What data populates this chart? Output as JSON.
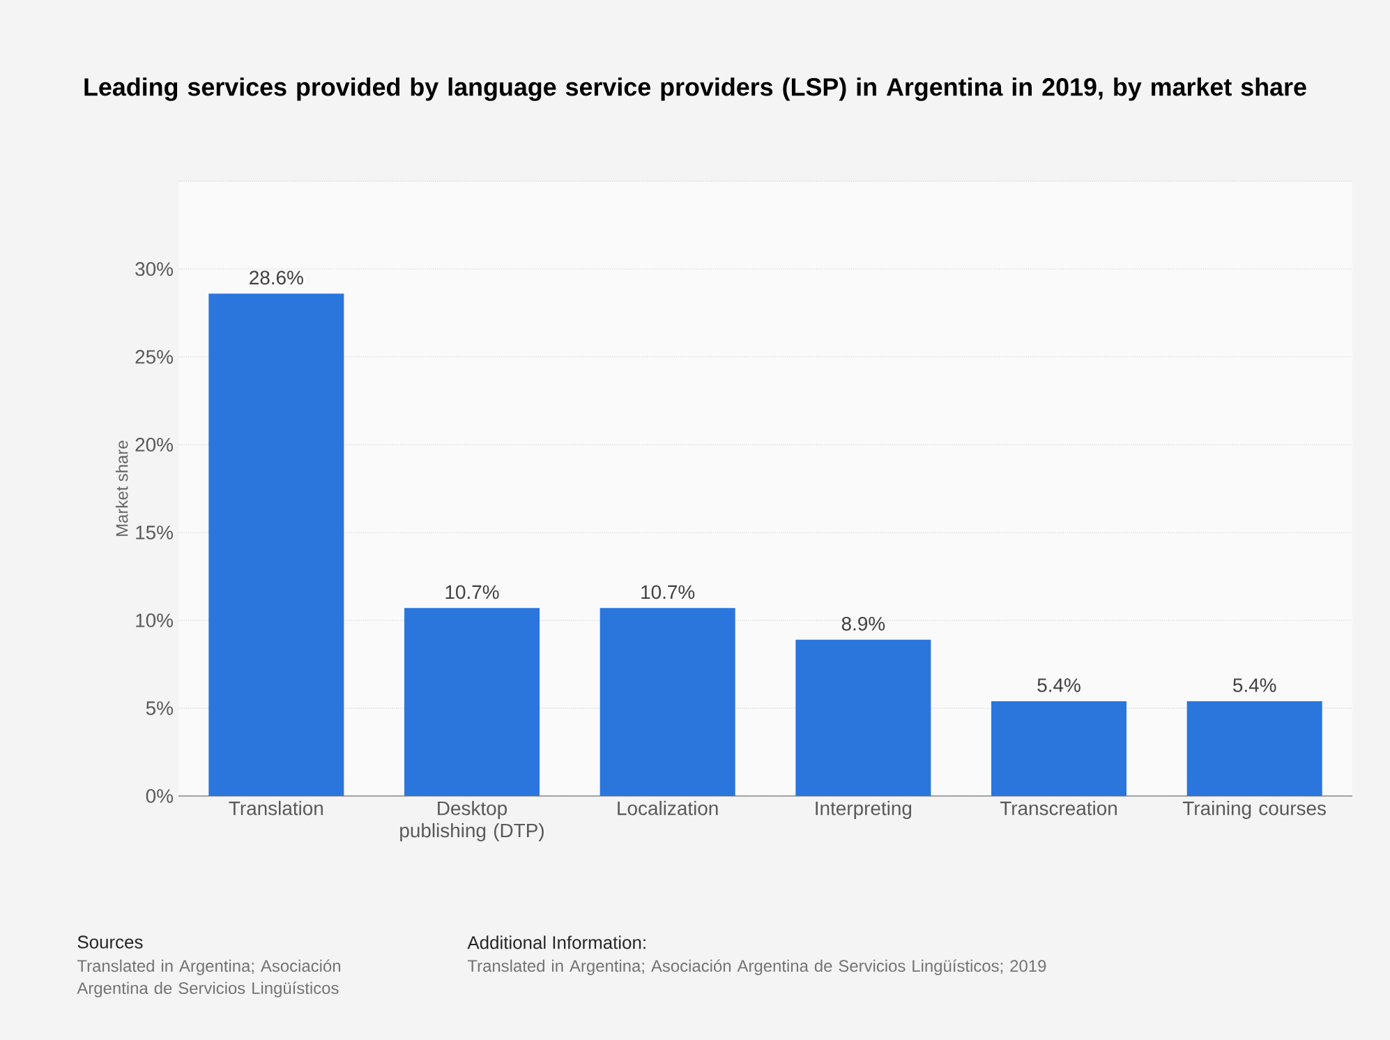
{
  "chart_data": {
    "type": "bar",
    "title": "Leading services provided by language service providers (LSP) in Argentina in 2019, by market share",
    "ylabel": "Market share",
    "categories": [
      "Translation",
      "Desktop publishing (DTP)",
      "Localization",
      "Interpreting",
      "Transcreation",
      "Training courses"
    ],
    "values": [
      28.6,
      10.7,
      10.7,
      8.9,
      5.4,
      5.4
    ],
    "value_labels": [
      "28.6%",
      "10.7%",
      "10.7%",
      "8.9%",
      "5.4%",
      "5.4%"
    ],
    "color": "#2a76dd",
    "ylim": [
      0,
      35
    ],
    "yticks": [
      {
        "value": 0,
        "label": "0%"
      },
      {
        "value": 5,
        "label": "5%"
      },
      {
        "value": 10,
        "label": "10%"
      },
      {
        "value": 15,
        "label": "15%"
      },
      {
        "value": 20,
        "label": "20%"
      },
      {
        "value": 25,
        "label": "25%"
      },
      {
        "value": 30,
        "label": "30%"
      },
      {
        "value": 35,
        "label": null
      }
    ],
    "grid": "y",
    "annotations": [
      "Sources",
      "Translated in Argentina; Asociación Argentina de Servicios Lingüísticos",
      "Additional Information:",
      "Translated in Argentina; Asociación Argentina de Servicios Lingüísticos; 2019"
    ]
  }
}
